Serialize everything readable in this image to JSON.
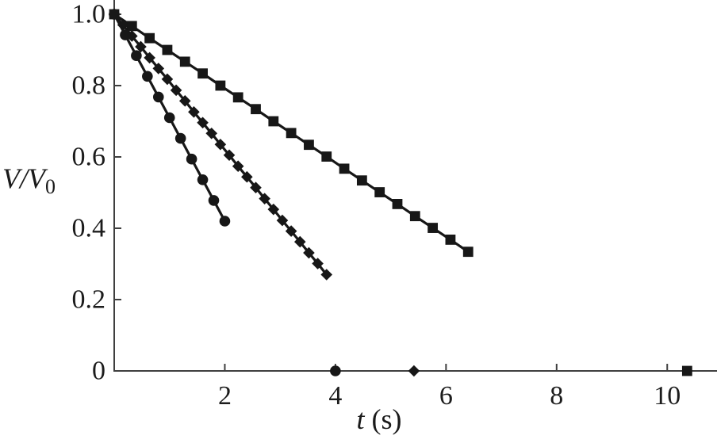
{
  "figure": {
    "background": "#ffffff",
    "ink_color": "#171717",
    "axis_color": "#3f3f3f",
    "text_color": "#1c1c1c"
  },
  "axes": {
    "y_label_main": "V/V",
    "y_label_sub": "0",
    "x_label_italic": "t",
    "x_label_rest": " (s)"
  },
  "chart_data": {
    "type": "line",
    "title": "",
    "xlabel": "t (s)",
    "ylabel": "V/V0",
    "xlim": [
      0,
      10.9
    ],
    "ylim": [
      0,
      1.04
    ],
    "grid": false,
    "legend": "none",
    "x_ticks": [
      {
        "value": 2,
        "label": "2"
      },
      {
        "value": 4,
        "label": "4"
      },
      {
        "value": 6,
        "label": "6"
      },
      {
        "value": 8,
        "label": "8"
      },
      {
        "value": 10,
        "label": "10"
      }
    ],
    "y_ticks": [
      {
        "value": 0,
        "label": "0"
      },
      {
        "value": 0.2,
        "label": "0.2"
      },
      {
        "value": 0.4,
        "label": "0.4"
      },
      {
        "value": 0.6,
        "label": "0.6"
      },
      {
        "value": 0.8,
        "label": "0.8"
      },
      {
        "value": 1.0,
        "label": "1.0"
      }
    ],
    "series": [
      {
        "name": "squares",
        "marker": "square",
        "points": [
          [
            0,
            1.0
          ],
          [
            0.32,
            0.967
          ],
          [
            0.64,
            0.933
          ],
          [
            0.96,
            0.9
          ],
          [
            1.28,
            0.867
          ],
          [
            1.6,
            0.834
          ],
          [
            1.92,
            0.8
          ],
          [
            2.24,
            0.767
          ],
          [
            2.56,
            0.734
          ],
          [
            2.88,
            0.7
          ],
          [
            3.2,
            0.667
          ],
          [
            3.52,
            0.634
          ],
          [
            3.84,
            0.601
          ],
          [
            4.16,
            0.567
          ],
          [
            4.48,
            0.534
          ],
          [
            4.8,
            0.501
          ],
          [
            5.12,
            0.468
          ],
          [
            5.44,
            0.434
          ],
          [
            5.76,
            0.401
          ],
          [
            6.08,
            0.368
          ],
          [
            6.4,
            0.334
          ]
        ],
        "axis_intercept_point": [
          10.36,
          0
        ]
      },
      {
        "name": "diamonds",
        "marker": "diamond",
        "points": [
          [
            0,
            1.0
          ],
          [
            0.16,
            0.97
          ],
          [
            0.32,
            0.939
          ],
          [
            0.48,
            0.909
          ],
          [
            0.64,
            0.878
          ],
          [
            0.8,
            0.848
          ],
          [
            0.96,
            0.818
          ],
          [
            1.12,
            0.787
          ],
          [
            1.28,
            0.757
          ],
          [
            1.44,
            0.726
          ],
          [
            1.6,
            0.696
          ],
          [
            1.76,
            0.666
          ],
          [
            1.92,
            0.635
          ],
          [
            2.08,
            0.605
          ],
          [
            2.24,
            0.574
          ],
          [
            2.4,
            0.544
          ],
          [
            2.56,
            0.514
          ],
          [
            2.72,
            0.483
          ],
          [
            2.88,
            0.453
          ],
          [
            3.04,
            0.422
          ],
          [
            3.2,
            0.392
          ],
          [
            3.36,
            0.362
          ],
          [
            3.52,
            0.331
          ],
          [
            3.68,
            0.301
          ],
          [
            3.84,
            0.27
          ]
        ],
        "axis_intercept_point": [
          5.42,
          0
        ]
      },
      {
        "name": "circles",
        "marker": "circle",
        "points": [
          [
            0,
            1.0
          ],
          [
            0.2,
            0.942
          ],
          [
            0.4,
            0.884
          ],
          [
            0.6,
            0.826
          ],
          [
            0.8,
            0.768
          ],
          [
            1.0,
            0.71
          ],
          [
            1.2,
            0.652
          ],
          [
            1.4,
            0.594
          ],
          [
            1.6,
            0.536
          ],
          [
            1.8,
            0.478
          ],
          [
            2.0,
            0.42
          ]
        ],
        "axis_intercept_point": [
          4.0,
          0
        ]
      }
    ]
  }
}
